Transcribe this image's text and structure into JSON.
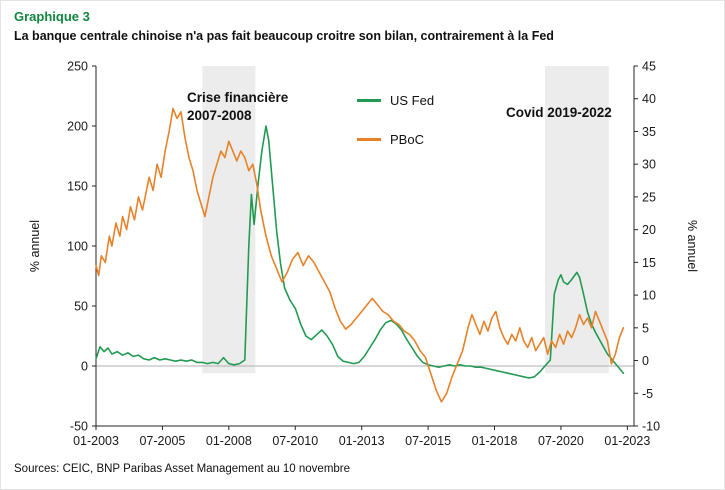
{
  "header": {
    "kicker": "Graphique 3",
    "title": "La banque centrale chinoise n'a pas fait beaucoup croitre son bilan, contrairement à la Fed"
  },
  "footer": {
    "sources": "Sources: CEIC, BNP Paribas Asset Management au 10 novembre"
  },
  "colors": {
    "title_green": "#11873f",
    "fed_green": "#229a53",
    "pboc_orange": "#e8822a",
    "band_gray": "#ececec",
    "zero_line": "#b0b0b0",
    "axis": "#262626"
  },
  "legend": {
    "items": [
      {
        "label": "US Fed",
        "color": "#229a53"
      },
      {
        "label": "PBoC",
        "color": "#e8822a"
      }
    ]
  },
  "annotations": [
    {
      "text": "Crise financière\n2007-2008"
    },
    {
      "text": "Covid 2019-2022"
    }
  ],
  "chart_data": {
    "type": "line",
    "title": "La banque centrale chinoise n'a pas fait beaucoup croitre son bilan, contrairement à la Fed",
    "x_ticks": [
      "01-2003",
      "07-2005",
      "01-2008",
      "07-2010",
      "01-2013",
      "07-2015",
      "01-2018",
      "07-2020",
      "01-2023"
    ],
    "x_tick_years": [
      2003.0,
      2005.5,
      2008.0,
      2010.5,
      2013.0,
      2015.5,
      2018.0,
      2020.5,
      2023.0
    ],
    "x_range": [
      2003.0,
      2023.25
    ],
    "left_axis": {
      "label": "% annuel",
      "min": -50,
      "max": 250,
      "ticks": [
        -50,
        0,
        50,
        100,
        150,
        200,
        250
      ]
    },
    "right_axis": {
      "label": "% annuel",
      "min": -10,
      "max": 45,
      "ticks": [
        -10,
        -5,
        0,
        5,
        10,
        15,
        20,
        25,
        30,
        35,
        40,
        45
      ]
    },
    "grid": false,
    "legend_position": "upper-center",
    "shaded_regions": [
      {
        "label": "Crise financière 2007-2008",
        "from": 2007.0,
        "to": 2009.0
      },
      {
        "label": "Covid 2019-2022",
        "from": 2019.9,
        "to": 2022.3
      }
    ],
    "series": [
      {
        "name": "US Fed",
        "axis": "left",
        "color": "#229a53",
        "points": [
          [
            2003.0,
            6
          ],
          [
            2003.15,
            16
          ],
          [
            2003.3,
            12
          ],
          [
            2003.45,
            15
          ],
          [
            2003.6,
            10
          ],
          [
            2003.8,
            12
          ],
          [
            2004.0,
            9
          ],
          [
            2004.2,
            11
          ],
          [
            2004.4,
            8
          ],
          [
            2004.6,
            9
          ],
          [
            2004.8,
            6
          ],
          [
            2005.0,
            5
          ],
          [
            2005.2,
            7
          ],
          [
            2005.4,
            5
          ],
          [
            2005.6,
            6
          ],
          [
            2005.8,
            5
          ],
          [
            2006.0,
            4
          ],
          [
            2006.2,
            5
          ],
          [
            2006.4,
            4
          ],
          [
            2006.6,
            5
          ],
          [
            2006.8,
            3
          ],
          [
            2007.0,
            3
          ],
          [
            2007.2,
            2
          ],
          [
            2007.4,
            3
          ],
          [
            2007.6,
            2
          ],
          [
            2007.8,
            7
          ],
          [
            2008.0,
            2
          ],
          [
            2008.2,
            1
          ],
          [
            2008.4,
            2
          ],
          [
            2008.6,
            5
          ],
          [
            2008.75,
            100
          ],
          [
            2008.85,
            143
          ],
          [
            2008.95,
            118
          ],
          [
            2009.1,
            152
          ],
          [
            2009.25,
            180
          ],
          [
            2009.4,
            200
          ],
          [
            2009.5,
            188
          ],
          [
            2009.65,
            150
          ],
          [
            2009.8,
            112
          ],
          [
            2009.95,
            85
          ],
          [
            2010.1,
            65
          ],
          [
            2010.3,
            55
          ],
          [
            2010.5,
            48
          ],
          [
            2010.7,
            35
          ],
          [
            2010.9,
            25
          ],
          [
            2011.1,
            22
          ],
          [
            2011.3,
            26
          ],
          [
            2011.5,
            30
          ],
          [
            2011.7,
            25
          ],
          [
            2011.9,
            18
          ],
          [
            2012.1,
            8
          ],
          [
            2012.3,
            4
          ],
          [
            2012.5,
            3
          ],
          [
            2012.7,
            2
          ],
          [
            2012.9,
            3
          ],
          [
            2013.1,
            8
          ],
          [
            2013.3,
            15
          ],
          [
            2013.5,
            22
          ],
          [
            2013.7,
            30
          ],
          [
            2013.9,
            36
          ],
          [
            2014.1,
            38
          ],
          [
            2014.3,
            35
          ],
          [
            2014.5,
            30
          ],
          [
            2014.7,
            22
          ],
          [
            2014.9,
            15
          ],
          [
            2015.1,
            8
          ],
          [
            2015.3,
            3
          ],
          [
            2015.5,
            1
          ],
          [
            2015.7,
            0
          ],
          [
            2015.9,
            -1
          ],
          [
            2016.1,
            0
          ],
          [
            2016.3,
            1
          ],
          [
            2016.5,
            0
          ],
          [
            2016.7,
            1
          ],
          [
            2016.9,
            0
          ],
          [
            2017.1,
            0
          ],
          [
            2017.3,
            -1
          ],
          [
            2017.5,
            -1
          ],
          [
            2017.7,
            -2
          ],
          [
            2017.9,
            -3
          ],
          [
            2018.1,
            -4
          ],
          [
            2018.3,
            -5
          ],
          [
            2018.5,
            -6
          ],
          [
            2018.7,
            -7
          ],
          [
            2018.9,
            -8
          ],
          [
            2019.1,
            -9
          ],
          [
            2019.3,
            -10
          ],
          [
            2019.5,
            -9
          ],
          [
            2019.7,
            -5
          ],
          [
            2019.9,
            0
          ],
          [
            2020.1,
            5
          ],
          [
            2020.25,
            60
          ],
          [
            2020.4,
            72
          ],
          [
            2020.5,
            76
          ],
          [
            2020.6,
            70
          ],
          [
            2020.75,
            68
          ],
          [
            2020.9,
            72
          ],
          [
            2021.0,
            75
          ],
          [
            2021.1,
            78
          ],
          [
            2021.2,
            74
          ],
          [
            2021.35,
            60
          ],
          [
            2021.5,
            45
          ],
          [
            2021.65,
            35
          ],
          [
            2021.8,
            28
          ],
          [
            2021.95,
            22
          ],
          [
            2022.1,
            16
          ],
          [
            2022.25,
            10
          ],
          [
            2022.4,
            6
          ],
          [
            2022.55,
            2
          ],
          [
            2022.7,
            -2
          ],
          [
            2022.85,
            -6
          ]
        ]
      },
      {
        "name": "PBoC",
        "axis": "right",
        "color": "#e8822a",
        "points": [
          [
            2003.0,
            14.5
          ],
          [
            2003.1,
            13
          ],
          [
            2003.2,
            16
          ],
          [
            2003.35,
            15
          ],
          [
            2003.5,
            19
          ],
          [
            2003.6,
            17.5
          ],
          [
            2003.75,
            21
          ],
          [
            2003.9,
            19
          ],
          [
            2004.0,
            22
          ],
          [
            2004.15,
            20
          ],
          [
            2004.3,
            23.5
          ],
          [
            2004.45,
            21.5
          ],
          [
            2004.6,
            25
          ],
          [
            2004.75,
            23
          ],
          [
            2004.9,
            26
          ],
          [
            2005.0,
            28
          ],
          [
            2005.15,
            26
          ],
          [
            2005.3,
            30
          ],
          [
            2005.45,
            28
          ],
          [
            2005.6,
            32
          ],
          [
            2005.75,
            35
          ],
          [
            2005.9,
            38.5
          ],
          [
            2006.05,
            37
          ],
          [
            2006.2,
            38
          ],
          [
            2006.35,
            34
          ],
          [
            2006.5,
            31
          ],
          [
            2006.65,
            29
          ],
          [
            2006.8,
            26
          ],
          [
            2006.95,
            24
          ],
          [
            2007.1,
            22
          ],
          [
            2007.25,
            25
          ],
          [
            2007.4,
            28
          ],
          [
            2007.55,
            30
          ],
          [
            2007.7,
            32
          ],
          [
            2007.85,
            31
          ],
          [
            2008.0,
            33.5
          ],
          [
            2008.15,
            32
          ],
          [
            2008.3,
            30.5
          ],
          [
            2008.45,
            32
          ],
          [
            2008.6,
            31
          ],
          [
            2008.75,
            29
          ],
          [
            2008.9,
            30
          ],
          [
            2009.05,
            27
          ],
          [
            2009.2,
            23
          ],
          [
            2009.4,
            19
          ],
          [
            2009.6,
            16
          ],
          [
            2009.8,
            14
          ],
          [
            2010.0,
            12
          ],
          [
            2010.2,
            13.5
          ],
          [
            2010.4,
            15.5
          ],
          [
            2010.6,
            16.5
          ],
          [
            2010.8,
            14.5
          ],
          [
            2011.0,
            16
          ],
          [
            2011.2,
            15
          ],
          [
            2011.4,
            13.5
          ],
          [
            2011.6,
            12
          ],
          [
            2011.8,
            10.5
          ],
          [
            2012.0,
            8
          ],
          [
            2012.2,
            6
          ],
          [
            2012.4,
            4.8
          ],
          [
            2012.6,
            5.5
          ],
          [
            2012.8,
            6.5
          ],
          [
            2013.0,
            7.5
          ],
          [
            2013.2,
            8.5
          ],
          [
            2013.4,
            9.5
          ],
          [
            2013.6,
            8.5
          ],
          [
            2013.8,
            7.5
          ],
          [
            2014.0,
            7
          ],
          [
            2014.2,
            6
          ],
          [
            2014.4,
            5.5
          ],
          [
            2014.6,
            4.5
          ],
          [
            2014.8,
            4
          ],
          [
            2015.0,
            3
          ],
          [
            2015.2,
            1.5
          ],
          [
            2015.4,
            0.5
          ],
          [
            2015.6,
            -2
          ],
          [
            2015.8,
            -4.5
          ],
          [
            2016.0,
            -6.3
          ],
          [
            2016.2,
            -5
          ],
          [
            2016.4,
            -2.5
          ],
          [
            2016.6,
            -0.5
          ],
          [
            2016.8,
            1.5
          ],
          [
            2017.0,
            5
          ],
          [
            2017.15,
            7
          ],
          [
            2017.3,
            5.5
          ],
          [
            2017.45,
            4
          ],
          [
            2017.6,
            6
          ],
          [
            2017.75,
            4.5
          ],
          [
            2017.9,
            6.5
          ],
          [
            2018.05,
            7.5
          ],
          [
            2018.2,
            5
          ],
          [
            2018.35,
            3.5
          ],
          [
            2018.5,
            2.5
          ],
          [
            2018.65,
            4
          ],
          [
            2018.8,
            3
          ],
          [
            2018.95,
            5
          ],
          [
            2019.1,
            3
          ],
          [
            2019.25,
            2
          ],
          [
            2019.4,
            3.5
          ],
          [
            2019.55,
            1.5
          ],
          [
            2019.7,
            2.5
          ],
          [
            2019.85,
            3.5
          ],
          [
            2020.0,
            1
          ],
          [
            2020.15,
            3
          ],
          [
            2020.3,
            2
          ],
          [
            2020.45,
            4
          ],
          [
            2020.6,
            2.5
          ],
          [
            2020.75,
            4.5
          ],
          [
            2020.9,
            3.5
          ],
          [
            2021.05,
            5
          ],
          [
            2021.2,
            7
          ],
          [
            2021.35,
            5.5
          ],
          [
            2021.5,
            6.5
          ],
          [
            2021.65,
            5
          ],
          [
            2021.8,
            7.5
          ],
          [
            2021.95,
            6
          ],
          [
            2022.1,
            4.5
          ],
          [
            2022.25,
            3
          ],
          [
            2022.4,
            -0.5
          ],
          [
            2022.55,
            1
          ],
          [
            2022.7,
            3.5
          ],
          [
            2022.85,
            5
          ]
        ]
      }
    ]
  }
}
